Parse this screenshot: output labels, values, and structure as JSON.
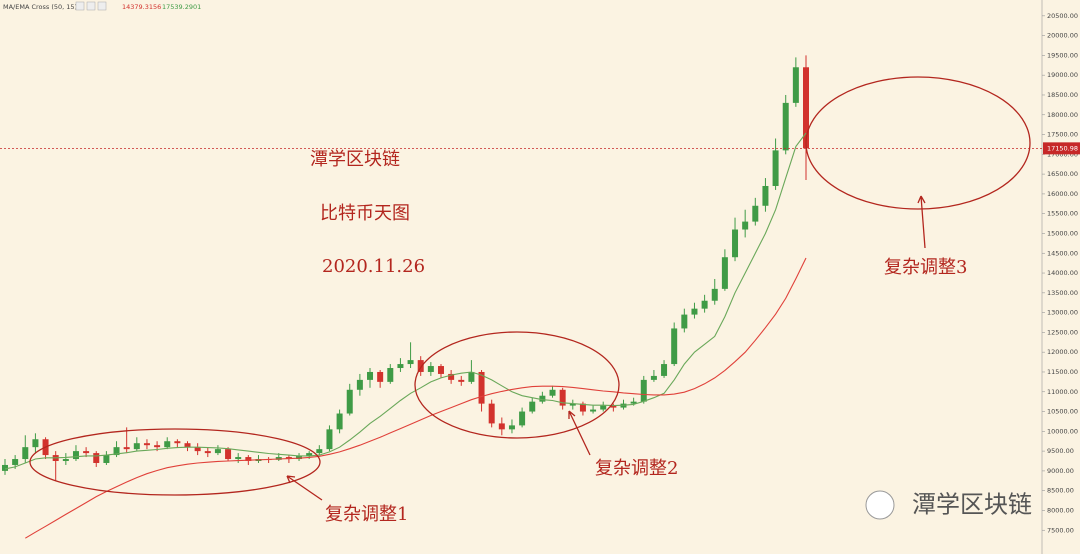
{
  "header": {
    "indicator": "MA/EMA Cross (50, 15)",
    "ma_slow": "14379.3156",
    "ma_fast": "17539.2901"
  },
  "chart_data": {
    "type": "candlestick",
    "ohlc": [
      [
        9000,
        9300,
        8900,
        9150
      ],
      [
        9150,
        9400,
        9050,
        9300
      ],
      [
        9300,
        9900,
        9200,
        9600
      ],
      [
        9600,
        9950,
        9450,
        9800
      ],
      [
        9800,
        9850,
        9300,
        9400
      ],
      [
        9400,
        9500,
        8750,
        9250
      ],
      [
        9250,
        9450,
        9150,
        9300
      ],
      [
        9300,
        9650,
        9250,
        9500
      ],
      [
        9500,
        9600,
        9350,
        9450
      ],
      [
        9450,
        9500,
        9100,
        9200
      ],
      [
        9200,
        9500,
        9150,
        9400
      ],
      [
        9400,
        9750,
        9350,
        9600
      ],
      [
        9600,
        10100,
        9450,
        9550
      ],
      [
        9550,
        9850,
        9500,
        9700
      ],
      [
        9700,
        9800,
        9550,
        9650
      ],
      [
        9650,
        9750,
        9500,
        9600
      ],
      [
        9600,
        9850,
        9550,
        9750
      ],
      [
        9750,
        9800,
        9600,
        9700
      ],
      [
        9700,
        9750,
        9500,
        9600
      ],
      [
        9600,
        9700,
        9400,
        9500
      ],
      [
        9500,
        9600,
        9350,
        9450
      ],
      [
        9450,
        9650,
        9400,
        9550
      ],
      [
        9550,
        9600,
        9250,
        9300
      ],
      [
        9300,
        9450,
        9200,
        9350
      ],
      [
        9350,
        9400,
        9150,
        9250
      ],
      [
        9250,
        9400,
        9200,
        9300
      ],
      [
        9300,
        9350,
        9200,
        9280
      ],
      [
        9280,
        9450,
        9250,
        9350
      ],
      [
        9350,
        9400,
        9200,
        9300
      ],
      [
        9300,
        9450,
        9250,
        9380
      ],
      [
        9380,
        9500,
        9300,
        9450
      ],
      [
        9450,
        9650,
        9400,
        9550
      ],
      [
        9550,
        10150,
        9500,
        10050
      ],
      [
        10050,
        10550,
        9950,
        10450
      ],
      [
        10450,
        11200,
        10400,
        11050
      ],
      [
        11050,
        11450,
        10900,
        11300
      ],
      [
        11300,
        11600,
        11100,
        11500
      ],
      [
        11500,
        11550,
        11100,
        11250
      ],
      [
        11250,
        11700,
        11200,
        11600
      ],
      [
        11600,
        11850,
        11500,
        11700
      ],
      [
        11700,
        12250,
        11600,
        11800
      ],
      [
        11800,
        11900,
        11400,
        11500
      ],
      [
        11500,
        11750,
        11400,
        11650
      ],
      [
        11650,
        11700,
        11350,
        11450
      ],
      [
        11450,
        11550,
        11200,
        11300
      ],
      [
        11300,
        11400,
        11150,
        11250
      ],
      [
        11250,
        11800,
        11200,
        11500
      ],
      [
        11500,
        11550,
        10500,
        10700
      ],
      [
        10700,
        10800,
        10100,
        10200
      ],
      [
        10200,
        10350,
        9900,
        10050
      ],
      [
        10050,
        10300,
        9950,
        10150
      ],
      [
        10150,
        10600,
        10100,
        10500
      ],
      [
        10500,
        10850,
        10450,
        10750
      ],
      [
        10750,
        11000,
        10700,
        10900
      ],
      [
        10900,
        11150,
        10850,
        11050
      ],
      [
        11050,
        11100,
        10550,
        10650
      ],
      [
        10650,
        10800,
        10550,
        10700
      ],
      [
        10700,
        10750,
        10400,
        10500
      ],
      [
        10500,
        10650,
        10450,
        10550
      ],
      [
        10550,
        10750,
        10500,
        10650
      ],
      [
        10650,
        10700,
        10500,
        10600
      ],
      [
        10600,
        10800,
        10550,
        10700
      ],
      [
        10700,
        10850,
        10650,
        10750
      ],
      [
        10750,
        11400,
        10700,
        11300
      ],
      [
        11300,
        11550,
        11250,
        11400
      ],
      [
        11400,
        11800,
        11350,
        11700
      ],
      [
        11700,
        12750,
        11650,
        12600
      ],
      [
        12600,
        13100,
        12500,
        12950
      ],
      [
        12950,
        13250,
        12850,
        13100
      ],
      [
        13100,
        13450,
        13000,
        13300
      ],
      [
        13300,
        13850,
        13200,
        13600
      ],
      [
        13600,
        14600,
        13550,
        14400
      ],
      [
        14400,
        15400,
        14300,
        15100
      ],
      [
        15100,
        15600,
        14900,
        15300
      ],
      [
        15300,
        15900,
        15200,
        15700
      ],
      [
        15700,
        16400,
        15550,
        16200
      ],
      [
        16200,
        17400,
        16100,
        17100
      ],
      [
        17100,
        18500,
        17000,
        18300
      ],
      [
        18300,
        19450,
        18200,
        19200
      ],
      [
        19200,
        19500,
        16350,
        17150.98
      ]
    ],
    "up_color": "#3f9b46",
    "down_color": "#d2322d",
    "series": [
      {
        "color": "#6aa85a",
        "values": [
          9050,
          9100,
          9200,
          9300,
          9330,
          9330,
          9340,
          9360,
          9380,
          9380,
          9400,
          9430,
          9460,
          9500,
          9520,
          9540,
          9570,
          9590,
          9600,
          9600,
          9590,
          9580,
          9560,
          9530,
          9500,
          9470,
          9440,
          9420,
          9400,
          9380,
          9380,
          9400,
          9480,
          9600,
          9780,
          9980,
          10200,
          10380,
          10580,
          10780,
          10960,
          11100,
          11250,
          11350,
          11420,
          11470,
          11500,
          11420,
          11300,
          11150,
          11000,
          10900,
          10850,
          10800,
          10780,
          10720,
          10700,
          10680,
          10660,
          10660,
          10650,
          10660,
          10680,
          10760,
          10850,
          10960,
          11300,
          11700,
          12000,
          12200,
          12400,
          12900,
          13500,
          14000,
          14500,
          15000,
          15600,
          16400,
          17200,
          17539.29
        ]
      },
      {
        "color": "#e0413a",
        "values": [
          null,
          null,
          7300,
          7450,
          7600,
          7750,
          7900,
          8050,
          8200,
          8350,
          8480,
          8600,
          8720,
          8830,
          8930,
          9010,
          9080,
          9130,
          9170,
          9200,
          9220,
          9240,
          9250,
          9260,
          9270,
          9280,
          9290,
          9300,
          9310,
          9320,
          9340,
          9370,
          9420,
          9480,
          9560,
          9650,
          9750,
          9850,
          9960,
          10070,
          10180,
          10290,
          10400,
          10500,
          10600,
          10700,
          10800,
          10880,
          10950,
          11010,
          11060,
          11100,
          11130,
          11140,
          11140,
          11130,
          11110,
          11080,
          11050,
          11020,
          11000,
          10970,
          10950,
          10930,
          10920,
          10920,
          10940,
          10990,
          11080,
          11200,
          11350,
          11540,
          11760,
          12000,
          12300,
          12620,
          12960,
          13360,
          13860,
          14379.32
        ]
      }
    ],
    "ylim": [
      6900,
      20900
    ],
    "yticks": [
      {
        "value": 7500,
        "label": "7500.00"
      },
      {
        "value": 8000,
        "label": "8000.00"
      },
      {
        "value": 8500,
        "label": "8500.00"
      },
      {
        "value": 9000,
        "label": "9000.00"
      },
      {
        "value": 9500,
        "label": "9500.00"
      },
      {
        "value": 10000,
        "label": "10000.00"
      },
      {
        "value": 10500,
        "label": "10500.00"
      },
      {
        "value": 11000,
        "label": "11000.00"
      },
      {
        "value": 11500,
        "label": "11500.00"
      },
      {
        "value": 12000,
        "label": "12000.00"
      },
      {
        "value": 12500,
        "label": "12500.00"
      },
      {
        "value": 13000,
        "label": "13000.00"
      },
      {
        "value": 13500,
        "label": "13500.00"
      },
      {
        "value": 14000,
        "label": "14000.00"
      },
      {
        "value": 14500,
        "label": "14500.00"
      },
      {
        "value": 15000,
        "label": "15000.00"
      },
      {
        "value": 15500,
        "label": "15500.00"
      },
      {
        "value": 16000,
        "label": "16000.00"
      },
      {
        "value": 16500,
        "label": "16500.00"
      },
      {
        "value": 17000,
        "label": "17000.00"
      },
      {
        "value": 17500,
        "label": "17500.00"
      },
      {
        "value": 18000,
        "label": "18000.00"
      },
      {
        "value": 18500,
        "label": "18500.00"
      },
      {
        "value": 19000,
        "label": "19000.00"
      },
      {
        "value": 19500,
        "label": "19500.00"
      },
      {
        "value": 20000,
        "label": "20000.00"
      },
      {
        "value": 20500,
        "label": "20500.00"
      }
    ],
    "price_line": 17150.98,
    "price_line_color": "#c62828",
    "annotations": [
      "潭学区块链",
      "比特币天图",
      "2020.11.26",
      "复杂调整1",
      "复杂调整2",
      "复杂调整3"
    ]
  },
  "watermark": "潭学区块链"
}
